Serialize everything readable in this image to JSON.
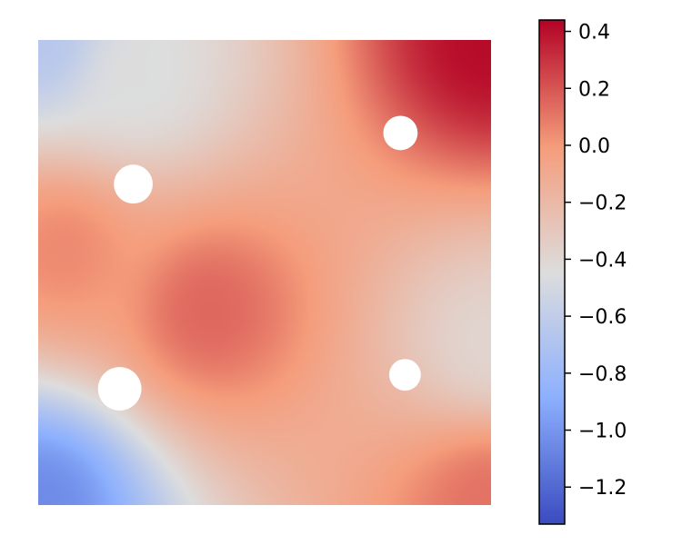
{
  "chart_data": {
    "type": "heatmap",
    "title": "",
    "xlabel": "",
    "ylabel": "",
    "axes_visible": false,
    "field": {
      "description_of_values": "scalar field on a square plate with four circular holes",
      "x_range": [
        0,
        1
      ],
      "y_range": [
        0,
        1
      ],
      "sample_points": [
        {
          "x": 0.0,
          "y": 1.0,
          "value": -0.65
        },
        {
          "x": 1.0,
          "y": 1.0,
          "value": 0.42
        },
        {
          "x": 0.0,
          "y": 0.0,
          "value": -1.05
        },
        {
          "x": 1.0,
          "y": 0.0,
          "value": 0.12
        },
        {
          "x": 0.38,
          "y": 0.42,
          "value": 0.15
        },
        {
          "x": 1.0,
          "y": 0.35,
          "value": -0.38
        },
        {
          "x": 0.22,
          "y": 0.92,
          "value": -0.45
        },
        {
          "x": 0.05,
          "y": 0.55,
          "value": 0.05
        }
      ],
      "holes": [
        {
          "center": [
            0.21,
            0.69
          ],
          "radius": 0.043
        },
        {
          "center": [
            0.8,
            0.8
          ],
          "radius": 0.038
        },
        {
          "center": [
            0.18,
            0.25
          ],
          "radius": 0.048
        },
        {
          "center": [
            0.81,
            0.28
          ],
          "radius": 0.035
        }
      ]
    },
    "colorbar": {
      "colormap": "coolwarm",
      "vmin": -1.33,
      "vmax": 0.44,
      "ticks": [
        0.4,
        0.2,
        0.0,
        -0.2,
        -0.4,
        -0.6,
        -0.8,
        -1.0,
        -1.2
      ],
      "tick_labels": [
        "0.4",
        "0.2",
        "0.0",
        "−0.2",
        "−0.4",
        "−0.6",
        "−0.8",
        "−1.0",
        "−1.2"
      ]
    },
    "colors": {
      "low": "#3b4cc0",
      "mid": "#dddddd",
      "high": "#b40426"
    }
  }
}
